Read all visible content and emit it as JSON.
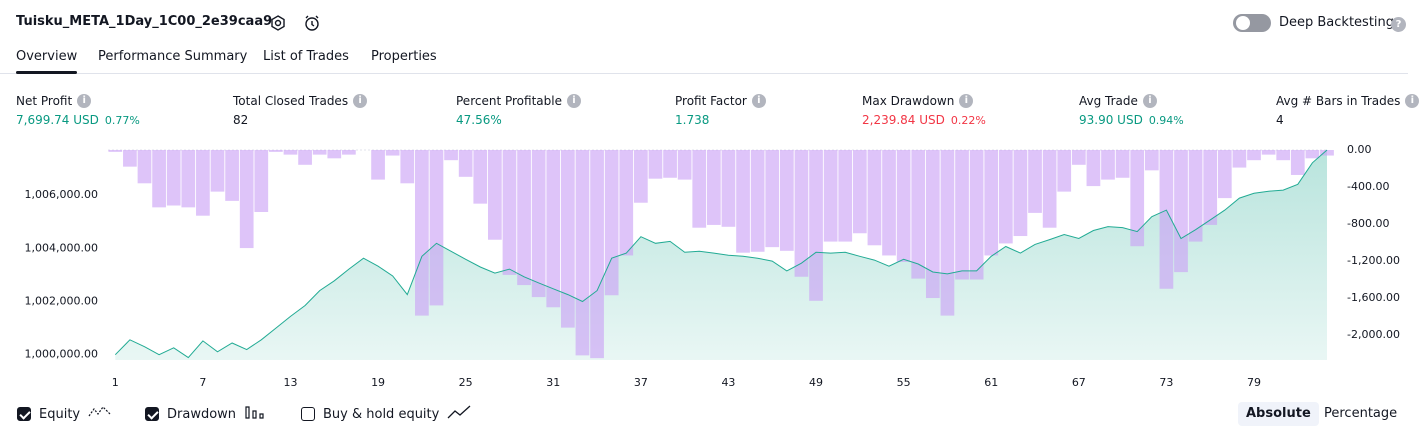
{
  "header": {
    "title": "Tuisku_META_1Day_1C00_2e39caa9",
    "toggle_label": "Deep Backtesting",
    "toggle_on": false
  },
  "tabs": [
    {
      "label": "Overview",
      "active": true
    },
    {
      "label": "Performance Summary",
      "active": false
    },
    {
      "label": "List of Trades",
      "active": false
    },
    {
      "label": "Properties",
      "active": false
    }
  ],
  "metrics": [
    {
      "label": "Net Profit",
      "value": "7,699.74 USD",
      "percent": "0.77%",
      "color": "#089981"
    },
    {
      "label": "Total Closed Trades",
      "value": "82",
      "color": "#131722"
    },
    {
      "label": "Percent Profitable",
      "value": "47.56%",
      "color": "#089981"
    },
    {
      "label": "Profit Factor",
      "value": "1.738",
      "color": "#089981"
    },
    {
      "label": "Max Drawdown",
      "value": "2,239.84 USD",
      "percent": "0.22%",
      "color": "#f23645"
    },
    {
      "label": "Avg Trade",
      "value": "93.90 USD",
      "percent": "0.94%",
      "color": "#089981"
    },
    {
      "label": "Avg # Bars in Trades",
      "value": "4",
      "color": "#131722"
    }
  ],
  "chart_data": {
    "type": "combo",
    "x": [
      1,
      2,
      3,
      4,
      5,
      6,
      7,
      8,
      9,
      10,
      11,
      12,
      13,
      14,
      15,
      16,
      17,
      18,
      19,
      20,
      21,
      22,
      23,
      24,
      25,
      26,
      27,
      28,
      29,
      30,
      31,
      32,
      33,
      34,
      35,
      36,
      37,
      38,
      39,
      40,
      41,
      42,
      43,
      44,
      45,
      46,
      47,
      48,
      49,
      50,
      51,
      52,
      53,
      54,
      55,
      56,
      57,
      58,
      59,
      60,
      61,
      62,
      63,
      64,
      65,
      66,
      67,
      68,
      69,
      70,
      71,
      72,
      73,
      74,
      75,
      76,
      77,
      78,
      79,
      80,
      81,
      82,
      83,
      84
    ],
    "xlim": [
      0.5,
      84
    ],
    "xticks": [
      1,
      7,
      13,
      19,
      25,
      31,
      37,
      43,
      49,
      55,
      61,
      67,
      73,
      79
    ],
    "ylim": [
      999800,
      1007700
    ],
    "yticks": [
      {
        "value": 1000000,
        "label": "1,000,000.00"
      },
      {
        "value": 1002000,
        "label": "1,002,000.00"
      },
      {
        "value": 1004000,
        "label": "1,004,000.00"
      },
      {
        "value": 1006000,
        "label": "1,006,000.00"
      }
    ],
    "y2lim": [
      -2270,
      0
    ],
    "y2ticks": [
      {
        "value": 0,
        "label": "0.00"
      },
      {
        "value": -400,
        "label": "-400.00"
      },
      {
        "value": -800,
        "label": "-800.00"
      },
      {
        "value": -1200,
        "label": "-1,200.00"
      },
      {
        "value": -1600,
        "label": "-1,600.00"
      },
      {
        "value": -2000,
        "label": "-2,000.00"
      }
    ],
    "grid": false,
    "series": [
      {
        "name": "Equity",
        "type": "area",
        "axis": "y",
        "color": "#22ab94",
        "checked": true,
        "values": [
          1000000,
          1000560,
          1000300,
          1000000,
          1000260,
          999890,
          1000520,
          1000110,
          1000440,
          1000190,
          1000560,
          1001000,
          1001440,
          1001850,
          1002410,
          1002780,
          1003220,
          1003630,
          1003330,
          1002960,
          1002260,
          1003700,
          1004190,
          1003890,
          1003590,
          1003300,
          1003070,
          1003220,
          1002930,
          1002700,
          1002480,
          1002260,
          1002000,
          1002410,
          1003630,
          1003820,
          1004440,
          1004190,
          1004260,
          1003850,
          1003890,
          1003820,
          1003740,
          1003700,
          1003630,
          1003520,
          1003150,
          1003440,
          1003850,
          1003820,
          1003850,
          1003700,
          1003560,
          1003330,
          1003590,
          1003410,
          1003110,
          1003040,
          1003150,
          1003150,
          1003700,
          1004070,
          1003820,
          1004150,
          1004330,
          1004520,
          1004370,
          1004670,
          1004820,
          1004780,
          1004630,
          1005190,
          1005440,
          1004370,
          1004700,
          1005070,
          1005440,
          1005890,
          1006070,
          1006150,
          1006190,
          1006410,
          1007220,
          1007700
        ]
      },
      {
        "name": "Drawdown",
        "type": "bar",
        "axis": "y2",
        "color": "#c9a0f5",
        "checked": true,
        "values": [
          -20,
          -180,
          -360,
          -620,
          -600,
          -620,
          -710,
          -450,
          -550,
          -1060,
          -670,
          -20,
          -50,
          -160,
          -50,
          -90,
          -50,
          0,
          -320,
          -60,
          -360,
          -1790,
          -1680,
          -110,
          -290,
          -580,
          -970,
          -1350,
          -1460,
          -1590,
          -1700,
          -1920,
          -2220,
          -2250,
          -1570,
          -1140,
          -570,
          -310,
          -300,
          -320,
          -840,
          -810,
          -830,
          -1110,
          -1100,
          -1050,
          -1090,
          -1370,
          -1630,
          -990,
          -990,
          -900,
          -1030,
          -1140,
          -1210,
          -1390,
          -1600,
          -1790,
          -1400,
          -1400,
          -1140,
          -1010,
          -930,
          -680,
          -840,
          -450,
          -160,
          -390,
          -320,
          -300,
          -1040,
          -220,
          -1500,
          -1320,
          -990,
          -810,
          -520,
          -190,
          -110,
          -50,
          -110,
          -270,
          -90,
          -60
        ]
      }
    ]
  },
  "extra_legend": {
    "label": "Buy & hold equity",
    "checked": false
  },
  "scale_buttons": [
    {
      "label": "Absolute",
      "active": true
    },
    {
      "label": "Percentage",
      "active": false
    }
  ]
}
